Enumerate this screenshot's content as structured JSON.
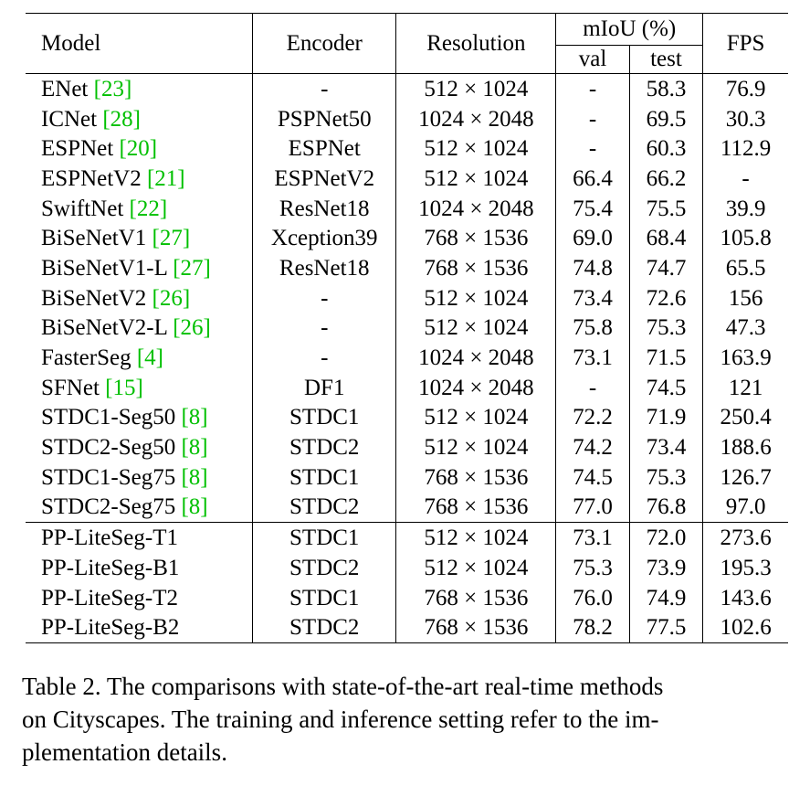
{
  "table": {
    "headers": {
      "model": "Model",
      "encoder": "Encoder",
      "resolution": "Resolution",
      "miou": "mIoU (%)",
      "val": "val",
      "test": "test",
      "fps": "FPS"
    },
    "rows": [
      {
        "model": "ENet",
        "cite": "[23]",
        "encoder": "-",
        "resolution": "512 × 1024",
        "val": "-",
        "test": "58.3",
        "fps": "76.9"
      },
      {
        "model": "ICNet",
        "cite": "[28]",
        "encoder": "PSPNet50",
        "resolution": "1024 × 2048",
        "val": "-",
        "test": "69.5",
        "fps": "30.3"
      },
      {
        "model": "ESPNet",
        "cite": "[20]",
        "encoder": "ESPNet",
        "resolution": "512 × 1024",
        "val": "-",
        "test": "60.3",
        "fps": "112.9"
      },
      {
        "model": "ESPNetV2",
        "cite": "[21]",
        "encoder": "ESPNetV2",
        "resolution": "512 × 1024",
        "val": "66.4",
        "test": "66.2",
        "fps": "-"
      },
      {
        "model": "SwiftNet",
        "cite": "[22]",
        "encoder": "ResNet18",
        "resolution": "1024 × 2048",
        "val": "75.4",
        "test": "75.5",
        "fps": "39.9"
      },
      {
        "model": "BiSeNetV1",
        "cite": "[27]",
        "encoder": "Xception39",
        "resolution": "768 × 1536",
        "val": "69.0",
        "test": "68.4",
        "fps": "105.8"
      },
      {
        "model": "BiSeNetV1-L",
        "cite": "[27]",
        "encoder": "ResNet18",
        "resolution": "768 × 1536",
        "val": "74.8",
        "test": "74.7",
        "fps": "65.5"
      },
      {
        "model": "BiSeNetV2",
        "cite": "[26]",
        "encoder": "-",
        "resolution": "512 × 1024",
        "val": "73.4",
        "test": "72.6",
        "fps": "156"
      },
      {
        "model": "BiSeNetV2-L",
        "cite": "[26]",
        "encoder": "-",
        "resolution": "512 × 1024",
        "val": "75.8",
        "test": "75.3",
        "fps": "47.3"
      },
      {
        "model": "FasterSeg",
        "cite": "[4]",
        "encoder": "-",
        "resolution": "1024 × 2048",
        "val": "73.1",
        "test": "71.5",
        "fps": "163.9"
      },
      {
        "model": "SFNet",
        "cite": "[15]",
        "encoder": "DF1",
        "resolution": "1024 × 2048",
        "val": "-",
        "test": "74.5",
        "fps": "121"
      },
      {
        "model": "STDC1-Seg50",
        "cite": "[8]",
        "encoder": "STDC1",
        "resolution": "512 × 1024",
        "val": "72.2",
        "test": "71.9",
        "fps": "250.4"
      },
      {
        "model": "STDC2-Seg50",
        "cite": "[8]",
        "encoder": "STDC2",
        "resolution": "512 × 1024",
        "val": "74.2",
        "test": "73.4",
        "fps": "188.6"
      },
      {
        "model": "STDC1-Seg75",
        "cite": "[8]",
        "encoder": "STDC1",
        "resolution": "768 × 1536",
        "val": "74.5",
        "test": "75.3",
        "fps": "126.7"
      },
      {
        "model": "STDC2-Seg75",
        "cite": "[8]",
        "encoder": "STDC2",
        "resolution": "768 × 1536",
        "val": "77.0",
        "test": "76.8",
        "fps": "97.0"
      }
    ],
    "ours": [
      {
        "model": "PP-LiteSeg-T1",
        "encoder": "STDC1",
        "resolution": "512 × 1024",
        "val": "73.1",
        "test": "72.0",
        "fps": "273.6"
      },
      {
        "model": "PP-LiteSeg-B1",
        "encoder": "STDC2",
        "resolution": "512 × 1024",
        "val": "75.3",
        "test": "73.9",
        "fps": "195.3"
      },
      {
        "model": "PP-LiteSeg-T2",
        "encoder": "STDC1",
        "resolution": "768 × 1536",
        "val": "76.0",
        "test": "74.9",
        "fps": "143.6"
      },
      {
        "model": "PP-LiteSeg-B2",
        "encoder": "STDC2",
        "resolution": "768 × 1536",
        "val": "78.2",
        "test": "77.5",
        "fps": "102.6"
      }
    ]
  },
  "caption": {
    "line1": "Table 2. The comparisons with state-of-the-art real-time methods",
    "line2": "on Cityscapes. The training and inference setting refer to the im-",
    "line3": "plementation details."
  }
}
